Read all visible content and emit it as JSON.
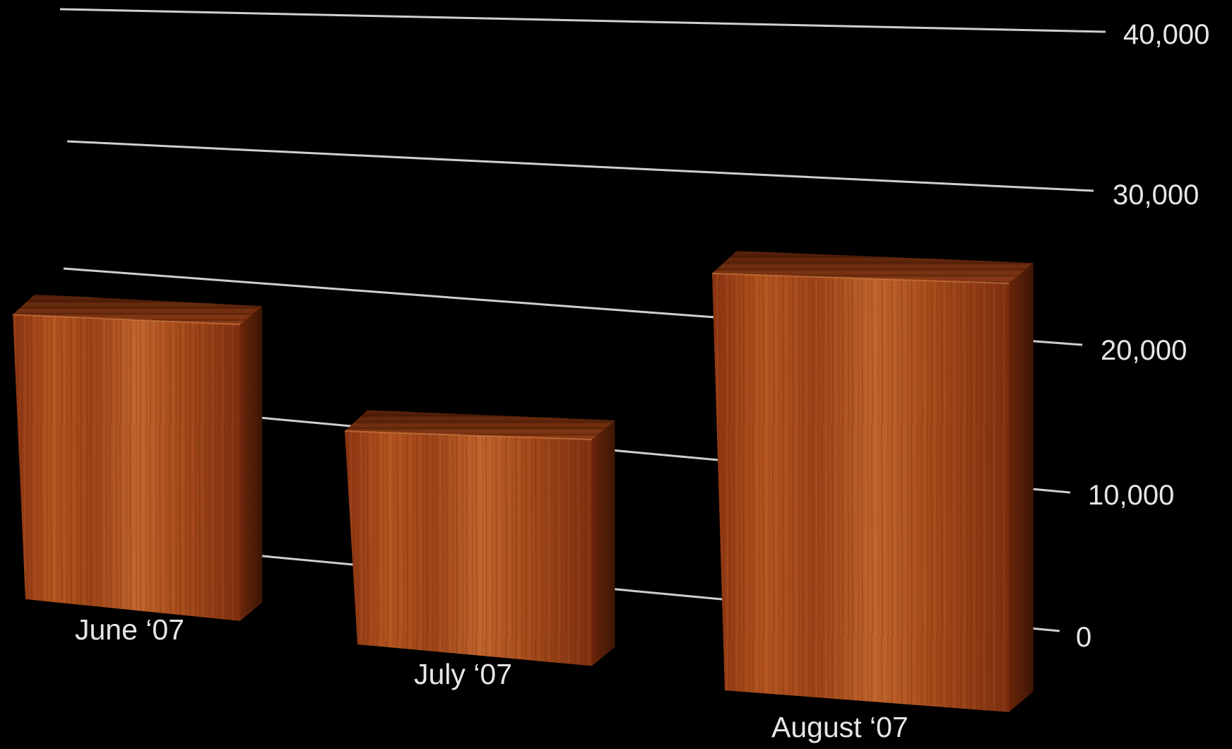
{
  "chart_data": {
    "type": "bar",
    "categories": [
      "June ‘07",
      "July ‘07",
      "August ‘07"
    ],
    "values": [
      24000,
      18000,
      30000
    ],
    "ylim": [
      0,
      40000
    ],
    "yticks": [
      "0",
      "10,000",
      "20,000",
      "30,000",
      "40,000"
    ],
    "grid": true,
    "style": "3d-wood",
    "colors": {
      "background": "#000000",
      "grid": "#cfcfcf",
      "bar": "#a0451c",
      "bar_top": "#6e2b10",
      "bar_side": "#5a2008",
      "text": "#e6e6e6"
    }
  }
}
